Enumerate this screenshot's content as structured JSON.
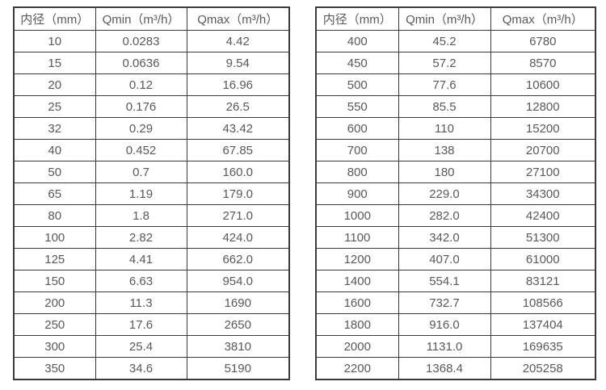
{
  "colors": {
    "background": "#ffffff",
    "border": "#3a3a3a",
    "text": "#595959"
  },
  "tables": [
    {
      "name": "flow-table-small-diameters",
      "headers": [
        "内径（mm）",
        "Qmin（m³/h）",
        "Qmax（m³/h）"
      ],
      "rows": [
        [
          "10",
          "0.0283",
          "4.42"
        ],
        [
          "15",
          "0.0636",
          "9.54"
        ],
        [
          "20",
          "0.12",
          "16.96"
        ],
        [
          "25",
          "0.176",
          "26.5"
        ],
        [
          "32",
          "0.29",
          "43.42"
        ],
        [
          "40",
          "0.452",
          "67.85"
        ],
        [
          "50",
          "0.7",
          "160.0"
        ],
        [
          "65",
          "1.19",
          "179.0"
        ],
        [
          "80",
          "1.8",
          "271.0"
        ],
        [
          "100",
          "2.82",
          "424.0"
        ],
        [
          "125",
          "4.41",
          "662.0"
        ],
        [
          "150",
          "6.63",
          "954.0"
        ],
        [
          "200",
          "11.3",
          "1690"
        ],
        [
          "250",
          "17.6",
          "2650"
        ],
        [
          "300",
          "25.4",
          "3810"
        ],
        [
          "350",
          "34.6",
          "5190"
        ]
      ]
    },
    {
      "name": "flow-table-large-diameters",
      "headers": [
        "内径（mm）",
        "Qmin（m³/h）",
        "Qmax（m³/h）"
      ],
      "rows": [
        [
          "400",
          "45.2",
          "6780"
        ],
        [
          "450",
          "57.2",
          "8570"
        ],
        [
          "500",
          "77.6",
          "10600"
        ],
        [
          "550",
          "85.5",
          "12800"
        ],
        [
          "600",
          "110",
          "15200"
        ],
        [
          "700",
          "138",
          "20700"
        ],
        [
          "800",
          "180",
          "27100"
        ],
        [
          "900",
          "229.0",
          "34300"
        ],
        [
          "1000",
          "282.0",
          "42400"
        ],
        [
          "1100",
          "342.0",
          "51300"
        ],
        [
          "1200",
          "407.0",
          "61000"
        ],
        [
          "1400",
          "554.1",
          "83121"
        ],
        [
          "1600",
          "732.7",
          "108566"
        ],
        [
          "1800",
          "916.0",
          "137404"
        ],
        [
          "2000",
          "1131.0",
          "169635"
        ],
        [
          "2200",
          "1368.4",
          "205258"
        ]
      ]
    }
  ]
}
